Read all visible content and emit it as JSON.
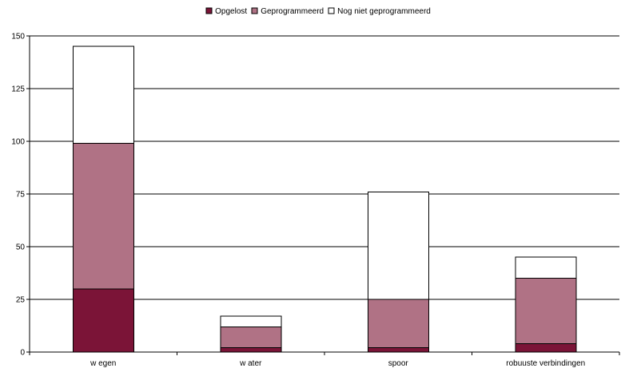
{
  "chart_data": {
    "type": "bar",
    "stacked": true,
    "categories": [
      "w egen",
      "w ater",
      "spoor",
      "robuuste verbindingen"
    ],
    "series": [
      {
        "name": "Opgelost",
        "values": [
          30,
          2,
          2,
          4
        ],
        "color": "#7b1437"
      },
      {
        "name": "Geprogrammeerd",
        "values": [
          69,
          10,
          23,
          31
        ],
        "color": "#b07285"
      },
      {
        "name": "Nog niet geprogrammeerd",
        "values": [
          46,
          5,
          51,
          10
        ],
        "color": "#ffffff"
      }
    ],
    "yticks": [
      0,
      25,
      50,
      75,
      100,
      125,
      150
    ],
    "ylim": [
      0,
      150
    ],
    "grid": true,
    "legend_position": "top-center",
    "title": "",
    "xlabel": "",
    "ylabel": ""
  }
}
